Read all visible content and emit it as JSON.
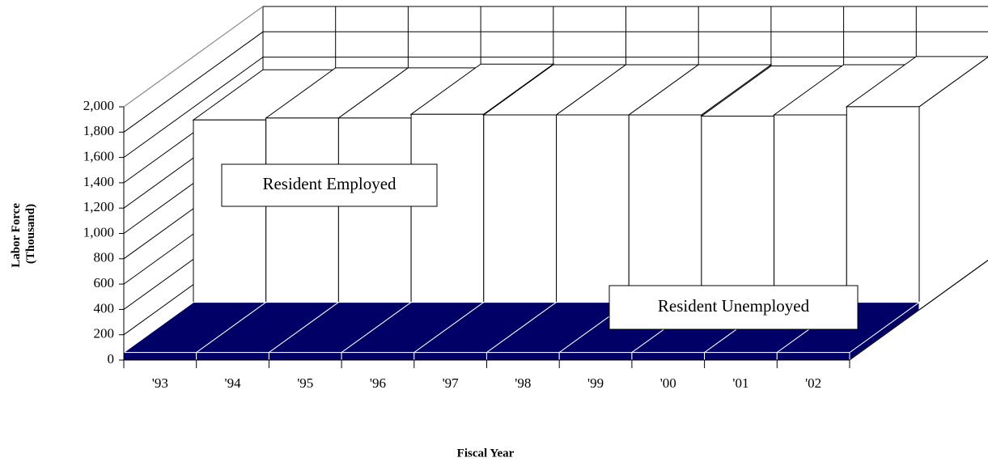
{
  "chart_data": {
    "type": "bar3d",
    "y_label": [
      "Labor Force",
      "(Thousand)"
    ],
    "x_label": "Fiscal Year",
    "categories": [
      "'93",
      "'94",
      "'95",
      "'96",
      "'97",
      "'98",
      "'99",
      "'00",
      "'01",
      "'02"
    ],
    "series": [
      {
        "name": "Resident Unemployed",
        "color": "#000066",
        "values": [
          60,
          60,
          60,
          60,
          60,
          60,
          60,
          60,
          60,
          60
        ]
      },
      {
        "name": "Resident Employed",
        "color": "#ffffff",
        "values": [
          1500,
          1515,
          1515,
          1545,
          1540,
          1540,
          1540,
          1530,
          1540,
          1605
        ]
      }
    ],
    "ylim": [
      0,
      2000
    ],
    "yticks": [
      0,
      200,
      400,
      600,
      800,
      {
        "value": 1000,
        "label": "1,000"
      },
      {
        "value": 1200,
        "label": "1,200"
      },
      {
        "value": 1400,
        "label": "1,400"
      },
      {
        "value": 1600,
        "label": "1,600"
      },
      {
        "value": 1800,
        "label": "1,800"
      },
      {
        "value": 2000,
        "label": "2,000"
      }
    ],
    "grid": true
  }
}
